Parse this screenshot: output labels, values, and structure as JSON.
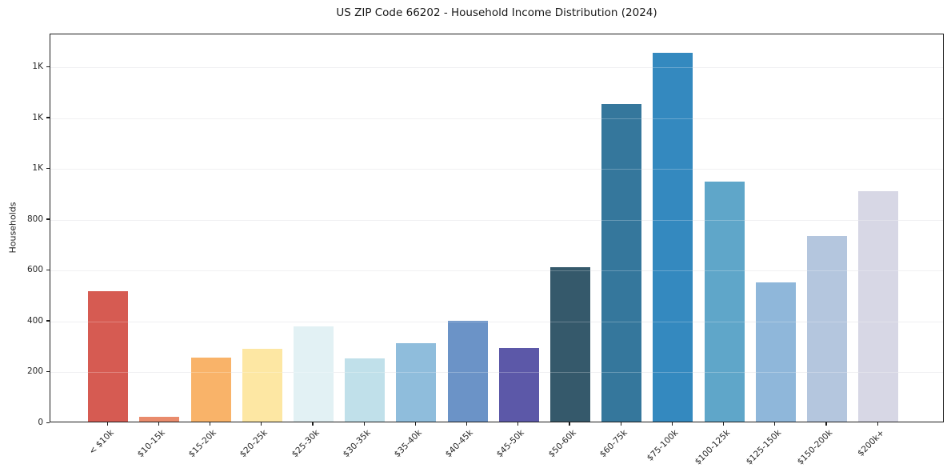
{
  "figure": {
    "background_color": "#ffffff",
    "spine_color": "#1c1c1c",
    "grid_color": "#ebebee",
    "text_color": "#262626"
  },
  "chart_data": {
    "type": "bar",
    "title": "US ZIP Code 66202 - Household Income Distribution (2024)",
    "xlabel": "",
    "ylabel": "Households",
    "categories": [
      "< $10k",
      "$10-15k",
      "$15-20k",
      "$20-25k",
      "$25-30k",
      "$30-35k",
      "$35-40k",
      "$40-45k",
      "$45-50k",
      "$50-60k",
      "$60-75k",
      "$75-100k",
      "$100-125k",
      "$125-150k",
      "$150-200k",
      "$200k+"
    ],
    "values": [
      512,
      20,
      252,
      285,
      374,
      248,
      310,
      396,
      289,
      609,
      1250,
      1451,
      945,
      549,
      729,
      906
    ],
    "bar_colors": [
      "#d65b52",
      "#e98b6c",
      "#f9b369",
      "#fde7a3",
      "#e2f1f4",
      "#c0e0ea",
      "#8fbddc",
      "#6b93c7",
      "#5c58a8",
      "#35596b",
      "#35779c",
      "#3489bf",
      "#5fa6c9",
      "#8fb7da",
      "#b4c6de",
      "#d7d7e5"
    ],
    "ylim": [
      0,
      1530
    ],
    "yticks": {
      "values": [
        0,
        200,
        400,
        600,
        800,
        1000,
        1200,
        1400
      ],
      "labels": [
        "0",
        "200",
        "400",
        "600",
        "800",
        "1K",
        "1K",
        "1K"
      ]
    },
    "grid": "horizontal",
    "legend": "none",
    "x_tick_label_rotation_deg": 45
  }
}
